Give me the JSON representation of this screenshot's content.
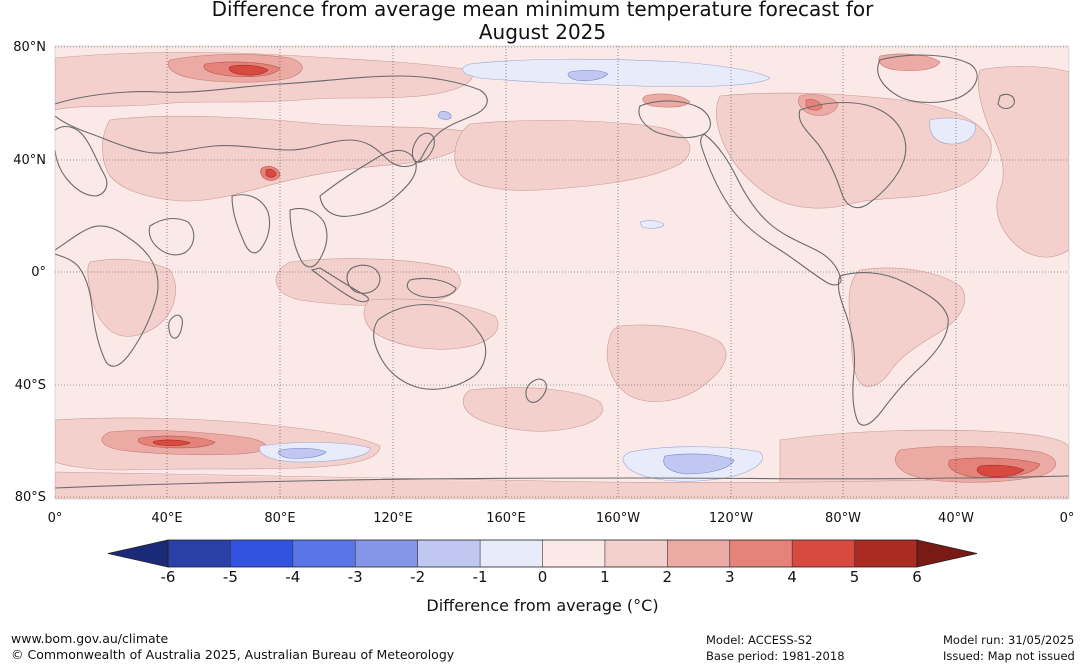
{
  "title": {
    "line1": "Difference from average mean minimum temperature forecast for",
    "line2": "August 2025"
  },
  "map": {
    "projection": "equirectangular, centred on 180°",
    "lat_labels": [
      "80°N",
      "40°N",
      "0°",
      "40°S",
      "80°S"
    ],
    "lon_labels": [
      "0°",
      "40°E",
      "80°E",
      "120°E",
      "160°E",
      "160°W",
      "120°W",
      "80°W",
      "40°W",
      "0°"
    ],
    "background_color": "#fbe9e7",
    "coastline_color": "#6b6b6b",
    "gridline_color": "#444444",
    "features": [
      {
        "name": "warm-anomaly-central-siberia",
        "level": "3 to 5"
      },
      {
        "name": "warm-anomaly-tibet",
        "level": "4 to 5"
      },
      {
        "name": "warm-anomaly-southern-ocean-indian-sector",
        "level": "3 to 4"
      },
      {
        "name": "warm-anomaly-southern-ocean-atlantic-sector",
        "level": "4 to 5"
      },
      {
        "name": "cool-anomaly-arctic-ocean",
        "level": "-1 to -2"
      },
      {
        "name": "cool-anomaly-antarctic-pacific-sector",
        "level": "-1 to -2"
      },
      {
        "name": "cool-anomaly-antarctic-indian-sector",
        "level": "-1 to -2"
      }
    ]
  },
  "colorbar": {
    "title": "Difference from average (°C)",
    "ticks": [
      "-6",
      "-5",
      "-4",
      "-3",
      "-2",
      "-1",
      "0",
      "1",
      "2",
      "3",
      "4",
      "5",
      "6"
    ],
    "under_color": "#1a2a78",
    "over_color": "#7a1a14",
    "colors": [
      "#2a3fa8",
      "#3252e2",
      "#5a75e6",
      "#8596e8",
      "#c0c8f2",
      "#e8ebfa",
      "#fbe9e7",
      "#f4d0cc",
      "#ecaaa5",
      "#e5827a",
      "#d84a3f",
      "#ab2a22"
    ]
  },
  "footer": {
    "website": "www.bom.gov.au/climate",
    "copyright": "© Commonwealth of Australia 2025, Australian Bureau of Meteorology",
    "model": "Model: ACCESS-S2",
    "base_period": "Base period: 1981-2018",
    "model_run": "Model run: 31/05/2025",
    "issued": "Issued: Map not issued"
  }
}
